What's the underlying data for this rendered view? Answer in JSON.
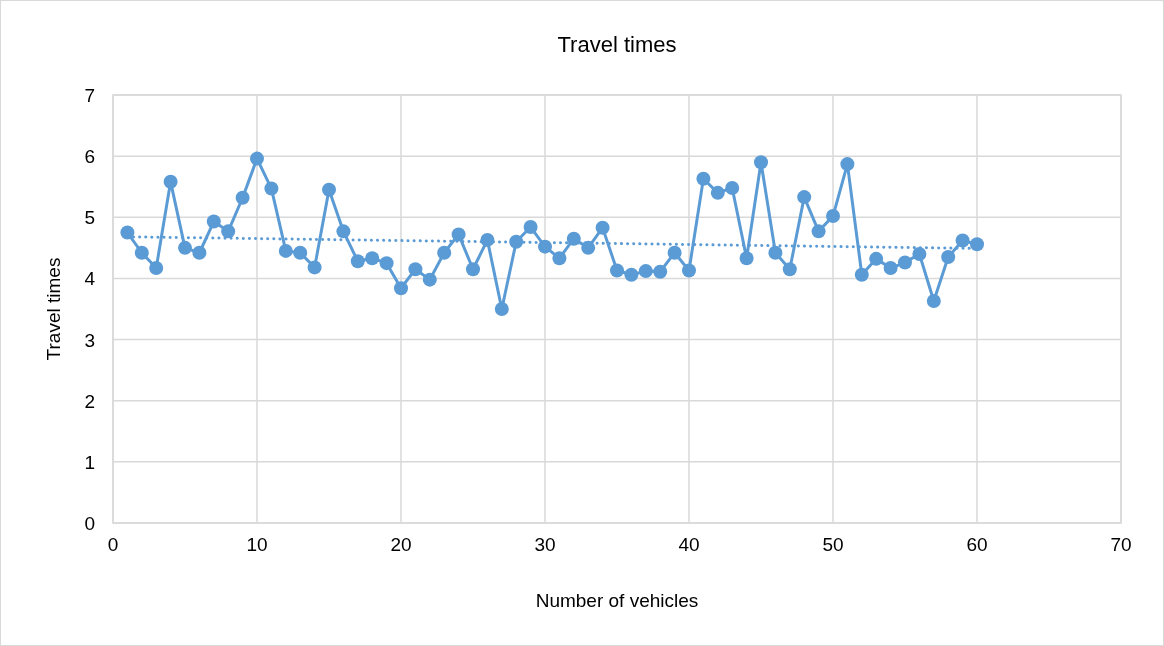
{
  "chart_data": {
    "type": "line",
    "title": "Travel times",
    "xlabel": "Number of vehicles",
    "ylabel": "Travel times",
    "xlim": [
      0,
      70
    ],
    "xticks": [
      0,
      10,
      20,
      30,
      40,
      50,
      60,
      70
    ],
    "ylim": [
      0,
      7
    ],
    "yticks": [
      0,
      1,
      2,
      3,
      4,
      5,
      6,
      7
    ],
    "grid": true,
    "series": [
      {
        "color": "#5b9bd5",
        "marker": "circle",
        "line_style": "solid",
        "x": [
          1,
          2,
          3,
          4,
          5,
          6,
          7,
          8,
          9,
          10,
          11,
          12,
          13,
          14,
          15,
          16,
          17,
          18,
          19,
          20,
          21,
          22,
          23,
          24,
          25,
          26,
          27,
          28,
          29,
          30,
          31,
          32,
          33,
          34,
          35,
          36,
          37,
          38,
          39,
          40,
          41,
          42,
          43,
          44,
          45,
          46,
          47,
          48,
          49,
          50,
          51,
          52,
          53,
          54,
          55,
          56,
          57,
          58,
          59,
          60
        ],
        "values": [
          4.75,
          4.42,
          4.17,
          5.58,
          4.5,
          4.42,
          4.93,
          4.77,
          5.32,
          5.96,
          5.47,
          4.45,
          4.42,
          4.18,
          5.45,
          4.77,
          4.28,
          4.33,
          4.25,
          3.84,
          4.15,
          3.98,
          4.42,
          4.72,
          4.15,
          4.63,
          3.5,
          4.6,
          4.84,
          4.52,
          4.33,
          4.65,
          4.5,
          4.83,
          4.13,
          4.06,
          4.12,
          4.11,
          4.42,
          4.13,
          5.63,
          5.4,
          5.48,
          4.33,
          5.9,
          4.42,
          4.15,
          5.33,
          4.77,
          5.02,
          5.87,
          4.06,
          4.32,
          4.17,
          4.26,
          4.4,
          3.63,
          4.35,
          4.62,
          4.56
        ]
      },
      {
        "type": "line",
        "color": "#5b9bd5",
        "marker": "none",
        "line_style": "dotted",
        "x": [
          1,
          60
        ],
        "values": [
          4.68,
          4.49
        ]
      }
    ]
  }
}
